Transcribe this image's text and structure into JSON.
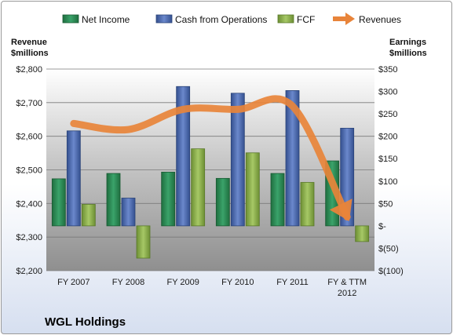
{
  "chart_data": {
    "type": "bar",
    "title": "WGL Holdings",
    "categories": [
      [
        "FY 2007"
      ],
      [
        "FY 2008"
      ],
      [
        "FY 2009"
      ],
      [
        "FY 2010"
      ],
      [
        "FY 2011"
      ],
      [
        "FY & TTM",
        "2012"
      ]
    ],
    "left_axis": {
      "label": [
        "Revenue",
        "$millions"
      ],
      "ylim": [
        2200,
        2800
      ],
      "ticks": [
        2200,
        2300,
        2400,
        2500,
        2600,
        2700,
        2800
      ],
      "tick_labels": [
        "$2,200",
        "$2,300",
        "$2,400",
        "$2,500",
        "$2,600",
        "$2,700",
        "$2,800"
      ]
    },
    "right_axis": {
      "label": [
        "Earnings",
        "$millions"
      ],
      "ylim": [
        -100,
        350
      ],
      "ticks": [
        -100,
        -50,
        0,
        50,
        100,
        150,
        200,
        250,
        300,
        350
      ],
      "tick_labels": [
        "$(100)",
        "$(50)",
        "$-",
        "$50",
        "$100",
        "$150",
        "$200",
        "$250",
        "$300",
        "$350"
      ]
    },
    "series": [
      {
        "name": "Net Income",
        "axis": "right",
        "kind": "bar",
        "color": "#2e8b57",
        "values": [
          105,
          117,
          120,
          106,
          117,
          145
        ]
      },
      {
        "name": "Cash from Operations",
        "axis": "right",
        "kind": "bar",
        "color": "#4f6fb8",
        "values": [
          212,
          62,
          311,
          296,
          302,
          218
        ]
      },
      {
        "name": "FCF",
        "axis": "right",
        "kind": "bar",
        "color": "#8db04a",
        "values": [
          48,
          -72,
          172,
          163,
          97,
          -35
        ]
      },
      {
        "name": "Revenues",
        "axis": "left",
        "kind": "line",
        "color": "#e8843a",
        "values": [
          2638,
          2620,
          2680,
          2680,
          2690,
          2360
        ]
      }
    ],
    "grid": true,
    "legend": "top"
  }
}
